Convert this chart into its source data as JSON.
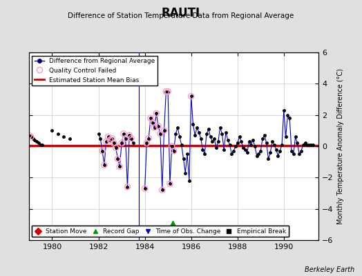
{
  "title": "RAUTI",
  "subtitle": "Difference of Station Temperature Data from Regional Average",
  "ylabel": "Monthly Temperature Anomaly Difference (°C)",
  "xlim": [
    1979.0,
    1991.5
  ],
  "ylim": [
    -6,
    6
  ],
  "yticks": [
    -6,
    -4,
    -2,
    0,
    2,
    4,
    6
  ],
  "xticks": [
    1980,
    1982,
    1984,
    1986,
    1988,
    1990
  ],
  "background_color": "#e0e0e0",
  "plot_bg_color": "#ffffff",
  "grid_color": "#c8c8c8",
  "bias_value": 0.05,
  "bias_color": "#cc0000",
  "line_color": "#0000cc",
  "marker_color": "#000000",
  "qc_color": "#ff99cc",
  "vertical_line_x": 1983.75,
  "record_gap_x": 1985.2,
  "station_data_x": [
    1979.0,
    1979.083,
    1979.167,
    1979.25,
    1979.333,
    1979.417,
    1979.5,
    1979.583,
    1980.0,
    1980.25,
    1980.5,
    1980.75,
    1982.0,
    1982.083,
    1982.167,
    1982.25,
    1982.333,
    1982.417,
    1982.5,
    1982.583,
    1982.667,
    1982.75,
    1982.833,
    1982.917,
    1983.0,
    1983.083,
    1983.167,
    1983.25,
    1983.333,
    1983.417,
    1983.5,
    1984.0,
    1984.083,
    1984.167,
    1984.25,
    1984.333,
    1984.417,
    1984.5,
    1984.583,
    1984.667,
    1984.75,
    1984.833,
    1984.917,
    1985.0,
    1985.083,
    1985.167,
    1985.25,
    1985.333,
    1985.417,
    1985.5,
    1985.583,
    1985.667,
    1985.75,
    1985.833,
    1985.917,
    1986.0,
    1986.083,
    1986.167,
    1986.25,
    1986.333,
    1986.417,
    1986.5,
    1986.583,
    1986.667,
    1986.75,
    1986.833,
    1986.917,
    1987.0,
    1987.083,
    1987.167,
    1987.25,
    1987.333,
    1987.417,
    1987.5,
    1987.583,
    1987.667,
    1987.75,
    1987.833,
    1987.917,
    1988.0,
    1988.083,
    1988.167,
    1988.25,
    1988.333,
    1988.417,
    1988.5,
    1988.583,
    1988.667,
    1988.75,
    1988.833,
    1988.917,
    1989.0,
    1989.083,
    1989.167,
    1989.25,
    1989.333,
    1989.417,
    1989.5,
    1989.583,
    1989.667,
    1989.75,
    1989.833,
    1989.917,
    1990.0,
    1990.083,
    1990.167,
    1990.25,
    1990.333,
    1990.417,
    1990.5,
    1990.583,
    1990.667,
    1990.75,
    1990.833,
    1990.917,
    1991.0,
    1991.083,
    1991.167,
    1991.25
  ],
  "station_data_y": [
    0.7,
    0.6,
    0.5,
    0.4,
    0.3,
    0.2,
    0.1,
    0.1,
    1.0,
    0.8,
    0.6,
    0.5,
    0.8,
    0.5,
    -0.3,
    -1.2,
    0.3,
    0.6,
    0.4,
    0.5,
    0.2,
    -0.1,
    -0.8,
    -1.3,
    0.2,
    0.8,
    0.5,
    -2.6,
    0.7,
    0.5,
    0.2,
    -2.7,
    0.2,
    0.5,
    1.8,
    1.5,
    1.2,
    2.1,
    1.3,
    0.8,
    -2.8,
    1.0,
    3.5,
    3.5,
    -2.4,
    0.0,
    -0.3,
    0.8,
    1.2,
    0.6,
    0.1,
    -0.8,
    -1.7,
    -0.5,
    -2.2,
    3.2,
    1.4,
    0.7,
    1.2,
    0.9,
    0.5,
    -0.2,
    -0.5,
    0.8,
    1.1,
    0.6,
    0.3,
    0.5,
    -0.1,
    0.3,
    1.2,
    0.8,
    -0.2,
    0.9,
    0.4,
    0.1,
    -0.5,
    -0.3,
    0.0,
    0.2,
    0.6,
    0.3,
    -0.1,
    -0.2,
    -0.4,
    0.3,
    0.1,
    0.4,
    0.0,
    -0.6,
    -0.5,
    -0.3,
    0.5,
    0.7,
    0.2,
    -0.8,
    -0.4,
    0.3,
    0.1,
    -0.2,
    -0.6,
    -0.3,
    0.1,
    2.3,
    0.6,
    2.0,
    1.8,
    -0.3,
    -0.5,
    0.6,
    0.2,
    -0.5,
    -0.3,
    0.1,
    0.2,
    0.1,
    0.1,
    0.1,
    0.1
  ],
  "qc_fail_x": [
    1979.0,
    1979.083,
    1982.167,
    1982.25,
    1982.333,
    1982.417,
    1982.5,
    1982.583,
    1982.667,
    1982.75,
    1982.833,
    1982.917,
    1983.0,
    1983.083,
    1983.167,
    1983.25,
    1983.333,
    1983.417,
    1984.0,
    1984.083,
    1984.167,
    1984.25,
    1984.333,
    1984.417,
    1984.5,
    1984.583,
    1984.667,
    1984.75,
    1984.833,
    1984.917,
    1985.0,
    1985.083,
    1985.167,
    1985.25,
    1986.0
  ],
  "qc_fail_y": [
    0.7,
    0.6,
    -0.3,
    -1.2,
    0.3,
    0.6,
    0.4,
    0.5,
    0.2,
    -0.1,
    -0.8,
    -1.3,
    0.2,
    0.8,
    0.5,
    -2.6,
    0.7,
    0.5,
    -2.7,
    0.2,
    0.5,
    1.8,
    1.5,
    1.2,
    2.1,
    1.3,
    0.8,
    -2.8,
    1.0,
    3.5,
    3.5,
    -2.4,
    0.0,
    -0.3,
    3.2
  ]
}
